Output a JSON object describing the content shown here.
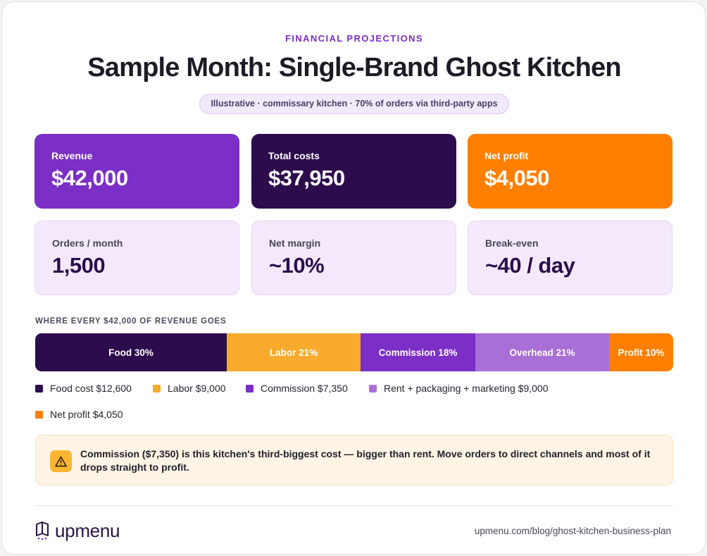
{
  "header": {
    "eyebrow": "FINANCIAL PROJECTIONS",
    "title": "Sample Month: Single-Brand Ghost Kitchen",
    "subtitle": "Illustrative · commissary kitchen · 70% of orders via third-party apps"
  },
  "stats": [
    {
      "label": "Revenue",
      "value": "$42,000",
      "color": "#7b2fc6"
    },
    {
      "label": "Total costs",
      "value": "$37,950",
      "color": "#2d0c4e"
    },
    {
      "label": "Net profit",
      "value": "$4,050",
      "color": "#ff7f00"
    },
    {
      "label": "Orders / month",
      "value": "1,500"
    },
    {
      "label": "Net margin",
      "value": "~10%"
    },
    {
      "label": "Break-even",
      "value": "~40 / day"
    }
  ],
  "chart_data": {
    "type": "bar",
    "title": "WHERE EVERY $42,000 OF REVENUE GOES",
    "stacked": true,
    "unit": "%",
    "total": 42000,
    "segments": [
      {
        "label": "Food 30%",
        "value": 30,
        "color": "#2d0c4e"
      },
      {
        "label": "Labor 21%",
        "value": 21,
        "color": "#f9ab2d"
      },
      {
        "label": "Commission 18%",
        "value": 18,
        "color": "#7b2fc6"
      },
      {
        "label": "Overhead 21%",
        "value": 21,
        "color": "#a96fd6"
      },
      {
        "label": "Profit 10%",
        "value": 10,
        "color": "#ff7f00"
      }
    ],
    "legend": [
      {
        "label": "Food cost $12,600",
        "color": "#2d0c4e"
      },
      {
        "label": "Labor $9,000",
        "color": "#f9ab2d"
      },
      {
        "label": "Commission $7,350",
        "color": "#7b2fc6"
      },
      {
        "label": "Rent + packaging + marketing $9,000",
        "color": "#a96fd6"
      },
      {
        "label": "Net profit $4,050",
        "color": "#ff7f00"
      }
    ]
  },
  "callout": {
    "icon": "warning-icon",
    "text": "Commission ($7,350) is this kitchen's third-biggest cost — bigger than rent. Move orders to direct channels and most of it drops straight to profit."
  },
  "footer": {
    "brand": "upmenu",
    "url": "upmenu.com/blog/ghost-kitchen-business-plan"
  }
}
